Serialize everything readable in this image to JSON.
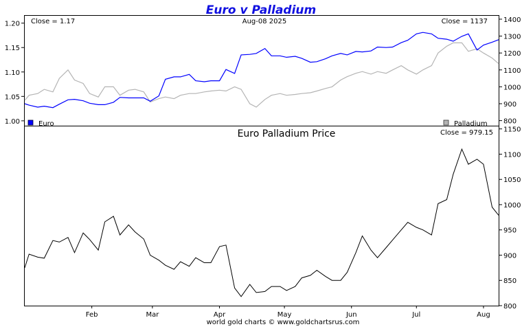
{
  "colors": {
    "euro": "#0000ff",
    "palladium": "#b4b4b4",
    "euro_palladium": "#000000",
    "title": "#1010e0"
  },
  "chart_data": [
    {
      "type": "line",
      "title": "Euro v Palladium",
      "date_label": "Aug-08  2025",
      "close_left": "Close = 1.17",
      "close_right": "Close = 1137",
      "left_axis": {
        "ticks": [
          "1.20",
          "1.15",
          "1.10",
          "1.05",
          "1.00"
        ],
        "ylim": [
          0.99,
          1.215
        ]
      },
      "right_axis": {
        "ticks": [
          "1400",
          "1300",
          "1200",
          "1100",
          "1000",
          "900",
          "800"
        ],
        "ylim": [
          770,
          1420
        ]
      },
      "x_dates": [
        "2025-01-01",
        "2025-01-03",
        "2025-01-07",
        "2025-01-10",
        "2025-01-14",
        "2025-01-17",
        "2025-01-21",
        "2025-01-24",
        "2025-01-28",
        "2025-01-31",
        "2025-02-04",
        "2025-02-07",
        "2025-02-11",
        "2025-02-14",
        "2025-02-18",
        "2025-02-21",
        "2025-02-25",
        "2025-02-28",
        "2025-03-04",
        "2025-03-07",
        "2025-03-11",
        "2025-03-14",
        "2025-03-18",
        "2025-03-21",
        "2025-03-25",
        "2025-03-28",
        "2025-04-01",
        "2025-04-04",
        "2025-04-08",
        "2025-04-11",
        "2025-04-15",
        "2025-04-18",
        "2025-04-22",
        "2025-04-25",
        "2025-04-29",
        "2025-05-02",
        "2025-05-06",
        "2025-05-09",
        "2025-05-13",
        "2025-05-16",
        "2025-05-20",
        "2025-05-23",
        "2025-05-27",
        "2025-05-30",
        "2025-06-03",
        "2025-06-06",
        "2025-06-10",
        "2025-06-13",
        "2025-06-17",
        "2025-06-20",
        "2025-06-24",
        "2025-06-27",
        "2025-07-01",
        "2025-07-04",
        "2025-07-08",
        "2025-07-11",
        "2025-07-15",
        "2025-07-18",
        "2025-07-22",
        "2025-07-25",
        "2025-07-29",
        "2025-08-01",
        "2025-08-05",
        "2025-08-08"
      ],
      "series": [
        {
          "name": "Euro",
          "values": [
            1.035,
            1.032,
            1.028,
            1.03,
            1.027,
            1.034,
            1.043,
            1.044,
            1.041,
            1.036,
            1.033,
            1.033,
            1.038,
            1.048,
            1.047,
            1.047,
            1.047,
            1.04,
            1.051,
            1.085,
            1.09,
            1.09,
            1.095,
            1.082,
            1.08,
            1.082,
            1.082,
            1.105,
            1.097,
            1.135,
            1.136,
            1.138,
            1.148,
            1.133,
            1.133,
            1.13,
            1.132,
            1.128,
            1.12,
            1.121,
            1.127,
            1.133,
            1.138,
            1.135,
            1.142,
            1.141,
            1.143,
            1.151,
            1.15,
            1.151,
            1.16,
            1.165,
            1.178,
            1.181,
            1.178,
            1.169,
            1.167,
            1.163,
            1.173,
            1.178,
            1.145,
            1.155,
            1.161,
            1.166
          ]
        },
        {
          "name": "Palladium",
          "values": [
            920,
            950,
            960,
            985,
            970,
            1050,
            1100,
            1040,
            1020,
            960,
            940,
            1000,
            1000,
            950,
            980,
            985,
            970,
            910,
            930,
            940,
            930,
            950,
            960,
            960,
            970,
            975,
            980,
            975,
            1000,
            985,
            900,
            880,
            925,
            950,
            960,
            950,
            955,
            960,
            965,
            975,
            990,
            1000,
            1040,
            1060,
            1080,
            1090,
            1075,
            1090,
            1080,
            1100,
            1125,
            1100,
            1075,
            1100,
            1125,
            1200,
            1240,
            1260,
            1260,
            1210,
            1225,
            1200,
            1170,
            1137
          ]
        }
      ],
      "legend": {
        "euro": "Euro",
        "palladium": "Palladium"
      }
    },
    {
      "type": "line",
      "title": "Euro Palladium Price",
      "close": "Close = 979.15",
      "right_axis": {
        "ticks": [
          "1150",
          "1100",
          "1050",
          "1000",
          "950",
          "900",
          "850",
          "800"
        ],
        "ylim": [
          800,
          1155
        ]
      },
      "x_labels": [
        "Feb",
        "Mar",
        "Apr",
        "May",
        "Jun",
        "Jul",
        "Aug"
      ],
      "x_dates": [
        "2025-01-01",
        "2025-01-03",
        "2025-01-07",
        "2025-01-10",
        "2025-01-14",
        "2025-01-17",
        "2025-01-21",
        "2025-01-24",
        "2025-01-28",
        "2025-01-31",
        "2025-02-04",
        "2025-02-07",
        "2025-02-11",
        "2025-02-14",
        "2025-02-18",
        "2025-02-21",
        "2025-02-25",
        "2025-02-28",
        "2025-03-04",
        "2025-03-07",
        "2025-03-11",
        "2025-03-14",
        "2025-03-18",
        "2025-03-21",
        "2025-03-25",
        "2025-03-28",
        "2025-04-01",
        "2025-04-04",
        "2025-04-08",
        "2025-04-11",
        "2025-04-15",
        "2025-04-18",
        "2025-04-22",
        "2025-04-25",
        "2025-04-29",
        "2025-05-02",
        "2025-05-06",
        "2025-05-09",
        "2025-05-13",
        "2025-05-16",
        "2025-05-20",
        "2025-05-23",
        "2025-05-27",
        "2025-05-30",
        "2025-06-03",
        "2025-06-06",
        "2025-06-10",
        "2025-06-13",
        "2025-06-17",
        "2025-06-20",
        "2025-06-24",
        "2025-06-27",
        "2025-07-01",
        "2025-07-04",
        "2025-07-08",
        "2025-07-11",
        "2025-07-15",
        "2025-07-18",
        "2025-07-22",
        "2025-07-25",
        "2025-07-29",
        "2025-08-01",
        "2025-08-05",
        "2025-08-08"
      ],
      "series": [
        {
          "values": [
            875,
            902,
            896,
            894,
            929,
            926,
            935,
            905,
            944,
            931,
            910,
            966,
            977,
            940,
            960,
            946,
            932,
            900,
            890,
            880,
            872,
            887,
            878,
            895,
            885,
            885,
            917,
            920,
            835,
            818,
            842,
            826,
            828,
            838,
            838,
            830,
            838,
            855,
            860,
            870,
            858,
            850,
            850,
            866,
            905,
            938,
            910,
            895,
            915,
            930,
            950,
            965,
            955,
            950,
            940,
            1002,
            1010,
            1060,
            1110,
            1080,
            1090,
            1080,
            995,
            979
          ]
        }
      ]
    }
  ],
  "footer": "world gold charts © www.goldchartsrus.com"
}
